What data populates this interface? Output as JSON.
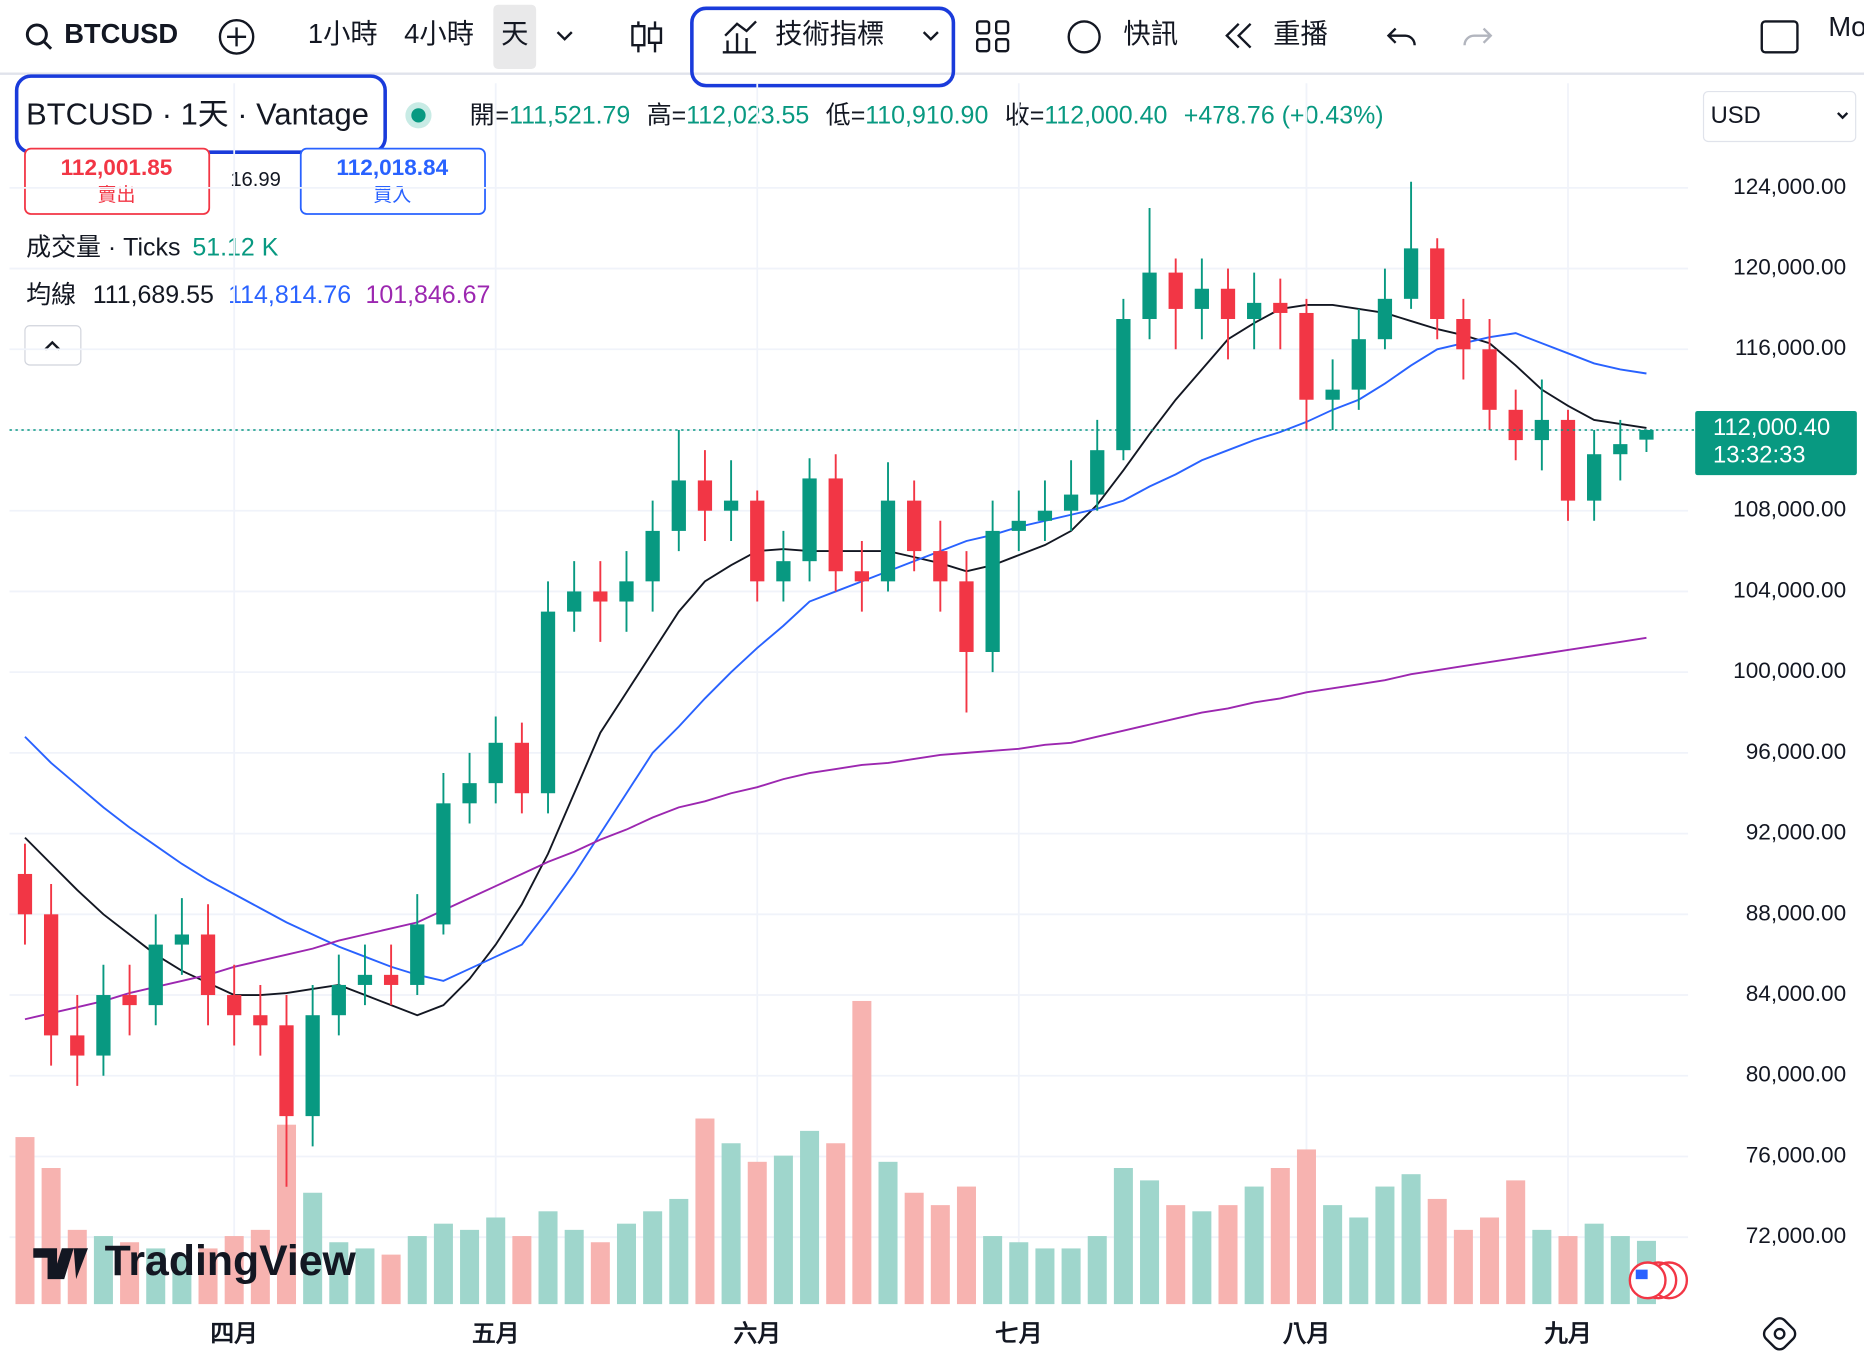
{
  "toolbar": {
    "symbol": "BTCUSD",
    "intervals": [
      "1小時",
      "4小時",
      "天"
    ],
    "indicators": "技術指標",
    "news": "快訊",
    "replay": "重播",
    "more": "Mo"
  },
  "header": {
    "title": "BTCUSD · 1天 · Vantage",
    "ohlc": [
      {
        "label": "開=",
        "value": "111,521.79"
      },
      {
        "label": "高=",
        "value": "112,023.55"
      },
      {
        "label": "低=",
        "value": "110,910.90"
      },
      {
        "label": "收=",
        "value": "112,000.40"
      }
    ],
    "change": "+478.76 (+0.43%)",
    "sell_price": "112,001.85",
    "sell": "賣出",
    "spread": "16.99",
    "buy_price": "112,018.84",
    "buy": "買入",
    "volume_title": "成交量 · Ticks",
    "volume_value": "51.12 K",
    "ma_title": "均線",
    "ma_values": [
      "111,689.55",
      "114,814.76",
      "101,846.67"
    ],
    "currency": "USD",
    "watermark": "TradingView",
    "last_price": "112,000.40",
    "countdown": "13:32:33"
  },
  "chart_data": {
    "type": "candlestick",
    "categories": [
      null,
      null,
      null,
      null,
      null,
      null,
      null,
      null,
      "四月",
      null,
      null,
      null,
      null,
      null,
      null,
      null,
      null,
      null,
      "五月",
      null,
      null,
      null,
      null,
      null,
      null,
      null,
      null,
      null,
      "六月",
      null,
      null,
      null,
      null,
      null,
      null,
      null,
      null,
      null,
      "七月",
      null,
      null,
      null,
      null,
      null,
      null,
      null,
      null,
      null,
      null,
      "八月",
      null,
      null,
      null,
      null,
      null,
      null,
      null,
      null,
      null,
      "九月",
      null,
      null,
      null
    ],
    "open": [
      90000,
      88000,
      82000,
      81000,
      84000,
      83500,
      86500,
      87000,
      84000,
      83000,
      82500,
      78000,
      83000,
      84500,
      85000,
      84500,
      87500,
      93500,
      94500,
      96500,
      94000,
      103000,
      104000,
      103500,
      104500,
      107000,
      109500,
      108000,
      108500,
      104500,
      105500,
      109600,
      105000,
      104500,
      108500,
      106000,
      104500,
      101000,
      107000,
      107500,
      108000,
      108800,
      111000,
      117500,
      119800,
      118000,
      119000,
      117500,
      118300,
      117800,
      113500,
      114000,
      116500,
      118500,
      121000,
      117500,
      116000,
      113000,
      111500,
      112500,
      108500,
      110800,
      111521.79
    ],
    "high": [
      91500,
      89500,
      84000,
      85500,
      85500,
      88000,
      88800,
      88500,
      85500,
      84500,
      84000,
      84500,
      86000,
      86500,
      86500,
      89000,
      95000,
      96000,
      97800,
      97500,
      104500,
      105500,
      105500,
      106000,
      108500,
      112000,
      111000,
      110500,
      109000,
      107000,
      110600,
      110800,
      106500,
      110400,
      109500,
      107500,
      106000,
      108500,
      109000,
      109500,
      110500,
      112500,
      118500,
      123000,
      120500,
      120500,
      120000,
      119800,
      119500,
      118500,
      115500,
      118000,
      120000,
      124300,
      121500,
      118500,
      117500,
      114000,
      114500,
      113000,
      112000,
      112500,
      112023.55
    ],
    "low": [
      86500,
      80500,
      79500,
      80000,
      82000,
      82500,
      85000,
      82500,
      81500,
      81000,
      74500,
      76500,
      82000,
      83500,
      83500,
      84000,
      87000,
      92500,
      93500,
      93000,
      93000,
      102000,
      101500,
      102000,
      103000,
      106000,
      106500,
      106500,
      103500,
      103500,
      104500,
      104000,
      103000,
      104000,
      105000,
      103000,
      98000,
      100000,
      106000,
      106500,
      107000,
      108000,
      110500,
      116500,
      116000,
      116500,
      115500,
      116000,
      116000,
      112000,
      112000,
      113000,
      116000,
      118000,
      116500,
      114500,
      112000,
      110500,
      110000,
      107500,
      107500,
      109500,
      110910.9
    ],
    "close": [
      88000,
      82000,
      81000,
      84000,
      83500,
      86500,
      87000,
      84000,
      83000,
      82500,
      78000,
      83000,
      84500,
      85000,
      84500,
      87500,
      93500,
      94500,
      96500,
      94000,
      103000,
      104000,
      103500,
      104500,
      107000,
      109500,
      108000,
      108500,
      104500,
      105500,
      109600,
      105000,
      104500,
      108500,
      106000,
      104500,
      101000,
      107000,
      107500,
      108000,
      108800,
      111000,
      117500,
      119800,
      118000,
      119000,
      117500,
      118300,
      117800,
      113500,
      114000,
      116500,
      118500,
      121000,
      117500,
      116000,
      113000,
      111500,
      112500,
      108500,
      110800,
      111300,
      112000.4
    ],
    "volume": [
      135,
      110,
      60,
      55,
      50,
      45,
      40,
      45,
      55,
      60,
      145,
      90,
      50,
      45,
      40,
      55,
      65,
      60,
      70,
      55,
      75,
      60,
      50,
      65,
      75,
      85,
      150,
      130,
      115,
      120,
      140,
      130,
      245,
      115,
      90,
      80,
      95,
      55,
      50,
      45,
      45,
      55,
      110,
      100,
      80,
      75,
      80,
      95,
      110,
      125,
      80,
      70,
      95,
      105,
      85,
      60,
      70,
      100,
      60,
      55,
      65,
      55,
      51.12
    ],
    "moving_averages": [
      {
        "color": "#131722",
        "values": [
          91800,
          90500,
          89200,
          88000,
          87000,
          86000,
          85200,
          84600,
          84000,
          84000,
          84100,
          84300,
          84500,
          84000,
          83500,
          83000,
          83500,
          84800,
          86500,
          88500,
          91000,
          94000,
          97000,
          99000,
          101000,
          103000,
          104500,
          105300,
          106000,
          106100,
          106000,
          106000,
          106000,
          106000,
          105700,
          105400,
          105000,
          105300,
          105800,
          106300,
          107000,
          108300,
          110000,
          111800,
          113500,
          115000,
          116500,
          117300,
          118000,
          118200,
          118200,
          118000,
          117800,
          117400,
          117000,
          116700,
          116300,
          115200,
          114000,
          113200,
          112500,
          112300,
          112100
        ]
      },
      {
        "color": "#2962ff",
        "values": [
          96800,
          95500,
          94400,
          93300,
          92300,
          91400,
          90500,
          89700,
          89000,
          88300,
          87600,
          87000,
          86400,
          85900,
          85400,
          85000,
          84700,
          85300,
          85900,
          86500,
          88200,
          90000,
          92000,
          94000,
          96000,
          97300,
          98700,
          100000,
          101200,
          102300,
          103500,
          104000,
          104500,
          105000,
          105500,
          106000,
          106500,
          106800,
          107200,
          107500,
          107800,
          108100,
          108500,
          109200,
          109800,
          110500,
          111000,
          111500,
          111900,
          112400,
          113000,
          113500,
          114300,
          115200,
          116000,
          116300,
          116600,
          116800,
          116300,
          115800,
          115300,
          115000,
          114800
        ]
      },
      {
        "color": "#9c27b0",
        "values": [
          82800,
          83100,
          83400,
          83700,
          84100,
          84400,
          84700,
          85000,
          85400,
          85700,
          86000,
          86300,
          86700,
          87000,
          87300,
          87600,
          88200,
          88800,
          89400,
          90000,
          90600,
          91100,
          91700,
          92200,
          92800,
          93300,
          93600,
          94000,
          94300,
          94700,
          95000,
          95200,
          95400,
          95500,
          95700,
          95900,
          96000,
          96100,
          96200,
          96400,
          96500,
          96800,
          97100,
          97400,
          97700,
          98000,
          98200,
          98500,
          98700,
          99000,
          99200,
          99400,
          99600,
          99900,
          100100,
          100300,
          100500,
          100700,
          100900,
          101100,
          101300,
          101500,
          101700
        ]
      }
    ],
    "up_color": "#089981",
    "down_color": "#f23645",
    "volume_up_color": "#9fd6cc",
    "volume_down_color": "#f7b3b0",
    "ylim": [
      68684,
      129184
    ],
    "yticks": [
      {
        "value": 124000,
        "label": "124,000.00"
      },
      {
        "value": 120000,
        "label": "120,000.00"
      },
      {
        "value": 116000,
        "label": "116,000.00"
      },
      {
        "value": 112000,
        "label": "112,000.00"
      },
      {
        "value": 108000,
        "label": "108,000.00"
      },
      {
        "value": 104000,
        "label": "104,000.00"
      },
      {
        "value": 100000,
        "label": "100,000.00"
      },
      {
        "value": 96000,
        "label": "96,000.00"
      },
      {
        "value": 92000,
        "label": "92,000.00"
      },
      {
        "value": 88000,
        "label": "88,000.00"
      },
      {
        "value": 84000,
        "label": "84,000.00"
      },
      {
        "value": 80000,
        "label": "80,000.00"
      },
      {
        "value": 76000,
        "label": "76,000.00"
      },
      {
        "value": 72000,
        "label": "72,000.00"
      }
    ],
    "grid": true
  }
}
